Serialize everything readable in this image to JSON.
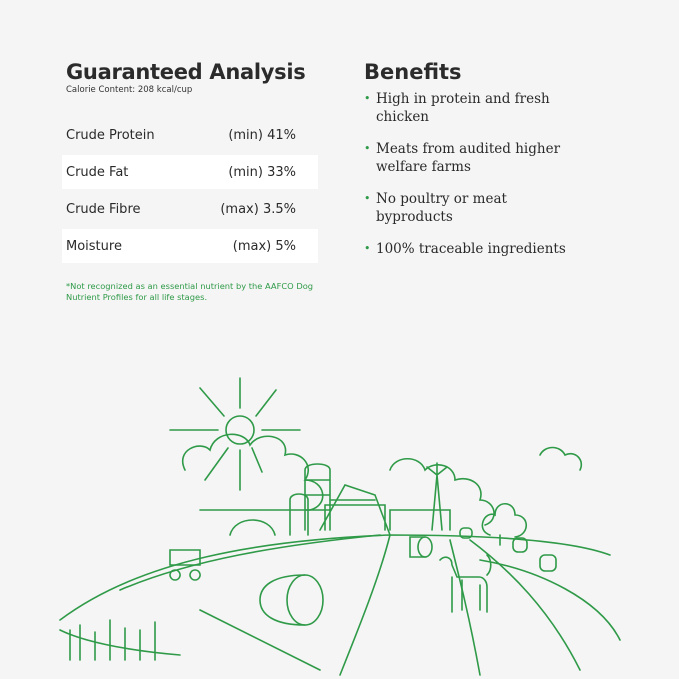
{
  "analysis": {
    "title": "Guaranteed Analysis",
    "calorie": "Calorie Content: 208 kcal/cup",
    "rows": [
      {
        "name": "Crude Protein",
        "value": "(min) 41%"
      },
      {
        "name": "Crude Fat",
        "value": "(min) 33%"
      },
      {
        "name": "Crude Fibre",
        "value": "(max) 3.5%"
      },
      {
        "name": "Moisture",
        "value": "(max) 5%"
      }
    ],
    "note": "*Not recognized as an essential nutrient by the AAFCO Dog Nutrient Profiles for all life stages."
  },
  "benefits": {
    "title": "Benefits",
    "items": [
      "High in protein and fresh chicken",
      "Meats from audited higher welfare farms",
      "No poultry or meat byproducts",
      "100% traceable ingredients"
    ]
  },
  "colors": {
    "accent": "#2f9a48",
    "background": "#f5f5f5",
    "text": "#2b2b2b"
  },
  "illustration": "farm-landscape-line-art"
}
